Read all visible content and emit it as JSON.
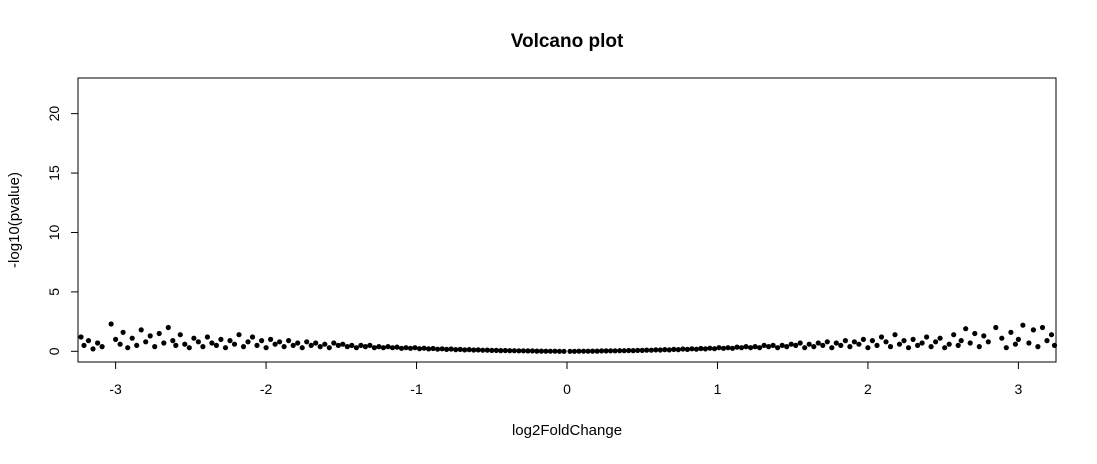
{
  "chart_data": {
    "type": "scatter",
    "title": "Volcano plot",
    "xlabel": "log2FoldChange",
    "ylabel": "-log10(pvalue)",
    "xlim": [
      -3.25,
      3.25
    ],
    "ylim": [
      -0.9,
      23
    ],
    "x_ticks": [
      -3,
      -2,
      -1,
      0,
      1,
      2,
      3
    ],
    "y_ticks": [
      0,
      5,
      10,
      15,
      20
    ],
    "grid": false,
    "legend": "none",
    "point_color": "#000000",
    "series": [
      {
        "points": [
          [
            -3.23,
            1.2
          ],
          [
            -3.21,
            0.5
          ],
          [
            -3.18,
            0.9
          ],
          [
            -3.15,
            0.2
          ],
          [
            -3.12,
            0.7
          ],
          [
            -3.09,
            0.4
          ],
          [
            -3.03,
            2.3
          ],
          [
            -3.0,
            1.0
          ],
          [
            -2.97,
            0.6
          ],
          [
            -2.95,
            1.6
          ],
          [
            -2.92,
            0.3
          ],
          [
            -2.89,
            1.1
          ],
          [
            -2.86,
            0.5
          ],
          [
            -2.83,
            1.8
          ],
          [
            -2.8,
            0.8
          ],
          [
            -2.77,
            1.3
          ],
          [
            -2.74,
            0.4
          ],
          [
            -2.71,
            1.5
          ],
          [
            -2.68,
            0.7
          ],
          [
            -2.65,
            2.0
          ],
          [
            -2.62,
            0.9
          ],
          [
            -2.6,
            0.5
          ],
          [
            -2.57,
            1.4
          ],
          [
            -2.54,
            0.6
          ],
          [
            -2.51,
            0.3
          ],
          [
            -2.48,
            1.1
          ],
          [
            -2.45,
            0.8
          ],
          [
            -2.42,
            0.4
          ],
          [
            -2.39,
            1.2
          ],
          [
            -2.36,
            0.7
          ],
          [
            -2.33,
            0.5
          ],
          [
            -2.3,
            1.0
          ],
          [
            -2.27,
            0.3
          ],
          [
            -2.24,
            0.9
          ],
          [
            -2.21,
            0.6
          ],
          [
            -2.18,
            1.4
          ],
          [
            -2.15,
            0.4
          ],
          [
            -2.12,
            0.8
          ],
          [
            -2.09,
            1.2
          ],
          [
            -2.06,
            0.5
          ],
          [
            -2.03,
            0.9
          ],
          [
            -2.0,
            0.3
          ],
          [
            -1.97,
            1.0
          ],
          [
            -1.94,
            0.6
          ],
          [
            -1.91,
            0.8
          ],
          [
            -1.88,
            0.4
          ],
          [
            -1.85,
            0.9
          ],
          [
            -1.82,
            0.5
          ],
          [
            -1.79,
            0.7
          ],
          [
            -1.76,
            0.3
          ],
          [
            -1.73,
            0.8
          ],
          [
            -1.7,
            0.5
          ],
          [
            -1.67,
            0.7
          ],
          [
            -1.64,
            0.4
          ],
          [
            -1.61,
            0.6
          ],
          [
            -1.58,
            0.3
          ],
          [
            -1.55,
            0.7
          ],
          [
            -1.52,
            0.5
          ],
          [
            -1.49,
            0.6
          ],
          [
            -1.46,
            0.4
          ],
          [
            -1.43,
            0.5
          ],
          [
            -1.4,
            0.3
          ],
          [
            -1.37,
            0.5
          ],
          [
            -1.34,
            0.4
          ],
          [
            -1.31,
            0.5
          ],
          [
            -1.28,
            0.3
          ],
          [
            -1.25,
            0.4
          ],
          [
            -1.22,
            0.3
          ],
          [
            -1.19,
            0.4
          ],
          [
            -1.16,
            0.3
          ],
          [
            -1.13,
            0.35
          ],
          [
            -1.1,
            0.25
          ],
          [
            -1.07,
            0.3
          ],
          [
            -1.04,
            0.25
          ],
          [
            -1.01,
            0.3
          ],
          [
            -0.98,
            0.22
          ],
          [
            -0.95,
            0.26
          ],
          [
            -0.92,
            0.2
          ],
          [
            -0.89,
            0.24
          ],
          [
            -0.86,
            0.18
          ],
          [
            -0.83,
            0.21
          ],
          [
            -0.8,
            0.16
          ],
          [
            -0.77,
            0.19
          ],
          [
            -0.74,
            0.14
          ],
          [
            -0.71,
            0.16
          ],
          [
            -0.68,
            0.12
          ],
          [
            -0.65,
            0.14
          ],
          [
            -0.62,
            0.11
          ],
          [
            -0.59,
            0.12
          ],
          [
            -0.56,
            0.09
          ],
          [
            -0.53,
            0.1
          ],
          [
            -0.5,
            0.08
          ],
          [
            -0.47,
            0.08
          ],
          [
            -0.44,
            0.06
          ],
          [
            -0.41,
            0.07
          ],
          [
            -0.38,
            0.05
          ],
          [
            -0.35,
            0.05
          ],
          [
            -0.32,
            0.04
          ],
          [
            -0.29,
            0.04
          ],
          [
            -0.26,
            0.03
          ],
          [
            -0.23,
            0.03
          ],
          [
            -0.2,
            0.02
          ],
          [
            -0.17,
            0.02
          ],
          [
            -0.14,
            0.01
          ],
          [
            -0.11,
            0.01
          ],
          [
            -0.08,
            0.01
          ],
          [
            -0.05,
            0.0
          ],
          [
            -0.02,
            0.0
          ],
          [
            0.02,
            0.0
          ],
          [
            0.05,
            0.0
          ],
          [
            0.08,
            0.01
          ],
          [
            0.11,
            0.01
          ],
          [
            0.14,
            0.01
          ],
          [
            0.17,
            0.02
          ],
          [
            0.2,
            0.02
          ],
          [
            0.23,
            0.03
          ],
          [
            0.26,
            0.03
          ],
          [
            0.29,
            0.04
          ],
          [
            0.32,
            0.04
          ],
          [
            0.35,
            0.05
          ],
          [
            0.38,
            0.05
          ],
          [
            0.41,
            0.07
          ],
          [
            0.44,
            0.06
          ],
          [
            0.47,
            0.08
          ],
          [
            0.5,
            0.08
          ],
          [
            0.53,
            0.1
          ],
          [
            0.56,
            0.09
          ],
          [
            0.59,
            0.12
          ],
          [
            0.62,
            0.11
          ],
          [
            0.65,
            0.14
          ],
          [
            0.68,
            0.12
          ],
          [
            0.71,
            0.16
          ],
          [
            0.74,
            0.14
          ],
          [
            0.77,
            0.19
          ],
          [
            0.8,
            0.16
          ],
          [
            0.83,
            0.21
          ],
          [
            0.86,
            0.18
          ],
          [
            0.89,
            0.24
          ],
          [
            0.92,
            0.2
          ],
          [
            0.95,
            0.26
          ],
          [
            0.98,
            0.22
          ],
          [
            1.01,
            0.3
          ],
          [
            1.04,
            0.25
          ],
          [
            1.07,
            0.3
          ],
          [
            1.1,
            0.25
          ],
          [
            1.13,
            0.35
          ],
          [
            1.16,
            0.3
          ],
          [
            1.19,
            0.4
          ],
          [
            1.22,
            0.3
          ],
          [
            1.25,
            0.4
          ],
          [
            1.28,
            0.3
          ],
          [
            1.31,
            0.5
          ],
          [
            1.34,
            0.4
          ],
          [
            1.37,
            0.5
          ],
          [
            1.4,
            0.3
          ],
          [
            1.43,
            0.5
          ],
          [
            1.46,
            0.4
          ],
          [
            1.49,
            0.6
          ],
          [
            1.52,
            0.5
          ],
          [
            1.55,
            0.7
          ],
          [
            1.58,
            0.3
          ],
          [
            1.61,
            0.6
          ],
          [
            1.64,
            0.4
          ],
          [
            1.67,
            0.7
          ],
          [
            1.7,
            0.5
          ],
          [
            1.73,
            0.8
          ],
          [
            1.76,
            0.3
          ],
          [
            1.79,
            0.7
          ],
          [
            1.82,
            0.5
          ],
          [
            1.85,
            0.9
          ],
          [
            1.88,
            0.4
          ],
          [
            1.91,
            0.8
          ],
          [
            1.94,
            0.6
          ],
          [
            1.97,
            1.0
          ],
          [
            2.0,
            0.3
          ],
          [
            2.03,
            0.9
          ],
          [
            2.06,
            0.5
          ],
          [
            2.09,
            1.2
          ],
          [
            2.12,
            0.8
          ],
          [
            2.15,
            0.4
          ],
          [
            2.18,
            1.4
          ],
          [
            2.21,
            0.6
          ],
          [
            2.24,
            0.9
          ],
          [
            2.27,
            0.3
          ],
          [
            2.3,
            1.0
          ],
          [
            2.33,
            0.5
          ],
          [
            2.36,
            0.7
          ],
          [
            2.39,
            1.2
          ],
          [
            2.42,
            0.4
          ],
          [
            2.45,
            0.8
          ],
          [
            2.48,
            1.1
          ],
          [
            2.51,
            0.3
          ],
          [
            2.54,
            0.6
          ],
          [
            2.57,
            1.4
          ],
          [
            2.6,
            0.5
          ],
          [
            2.62,
            0.9
          ],
          [
            2.65,
            1.9
          ],
          [
            2.68,
            0.7
          ],
          [
            2.71,
            1.5
          ],
          [
            2.74,
            0.4
          ],
          [
            2.77,
            1.3
          ],
          [
            2.8,
            0.8
          ],
          [
            2.85,
            2.0
          ],
          [
            2.89,
            1.1
          ],
          [
            2.92,
            0.3
          ],
          [
            2.95,
            1.6
          ],
          [
            2.98,
            0.6
          ],
          [
            3.0,
            1.0
          ],
          [
            3.03,
            2.2
          ],
          [
            3.07,
            0.7
          ],
          [
            3.1,
            1.8
          ],
          [
            3.13,
            0.4
          ],
          [
            3.16,
            2.0
          ],
          [
            3.19,
            0.9
          ],
          [
            3.22,
            1.4
          ],
          [
            3.24,
            0.5
          ]
        ]
      }
    ]
  }
}
